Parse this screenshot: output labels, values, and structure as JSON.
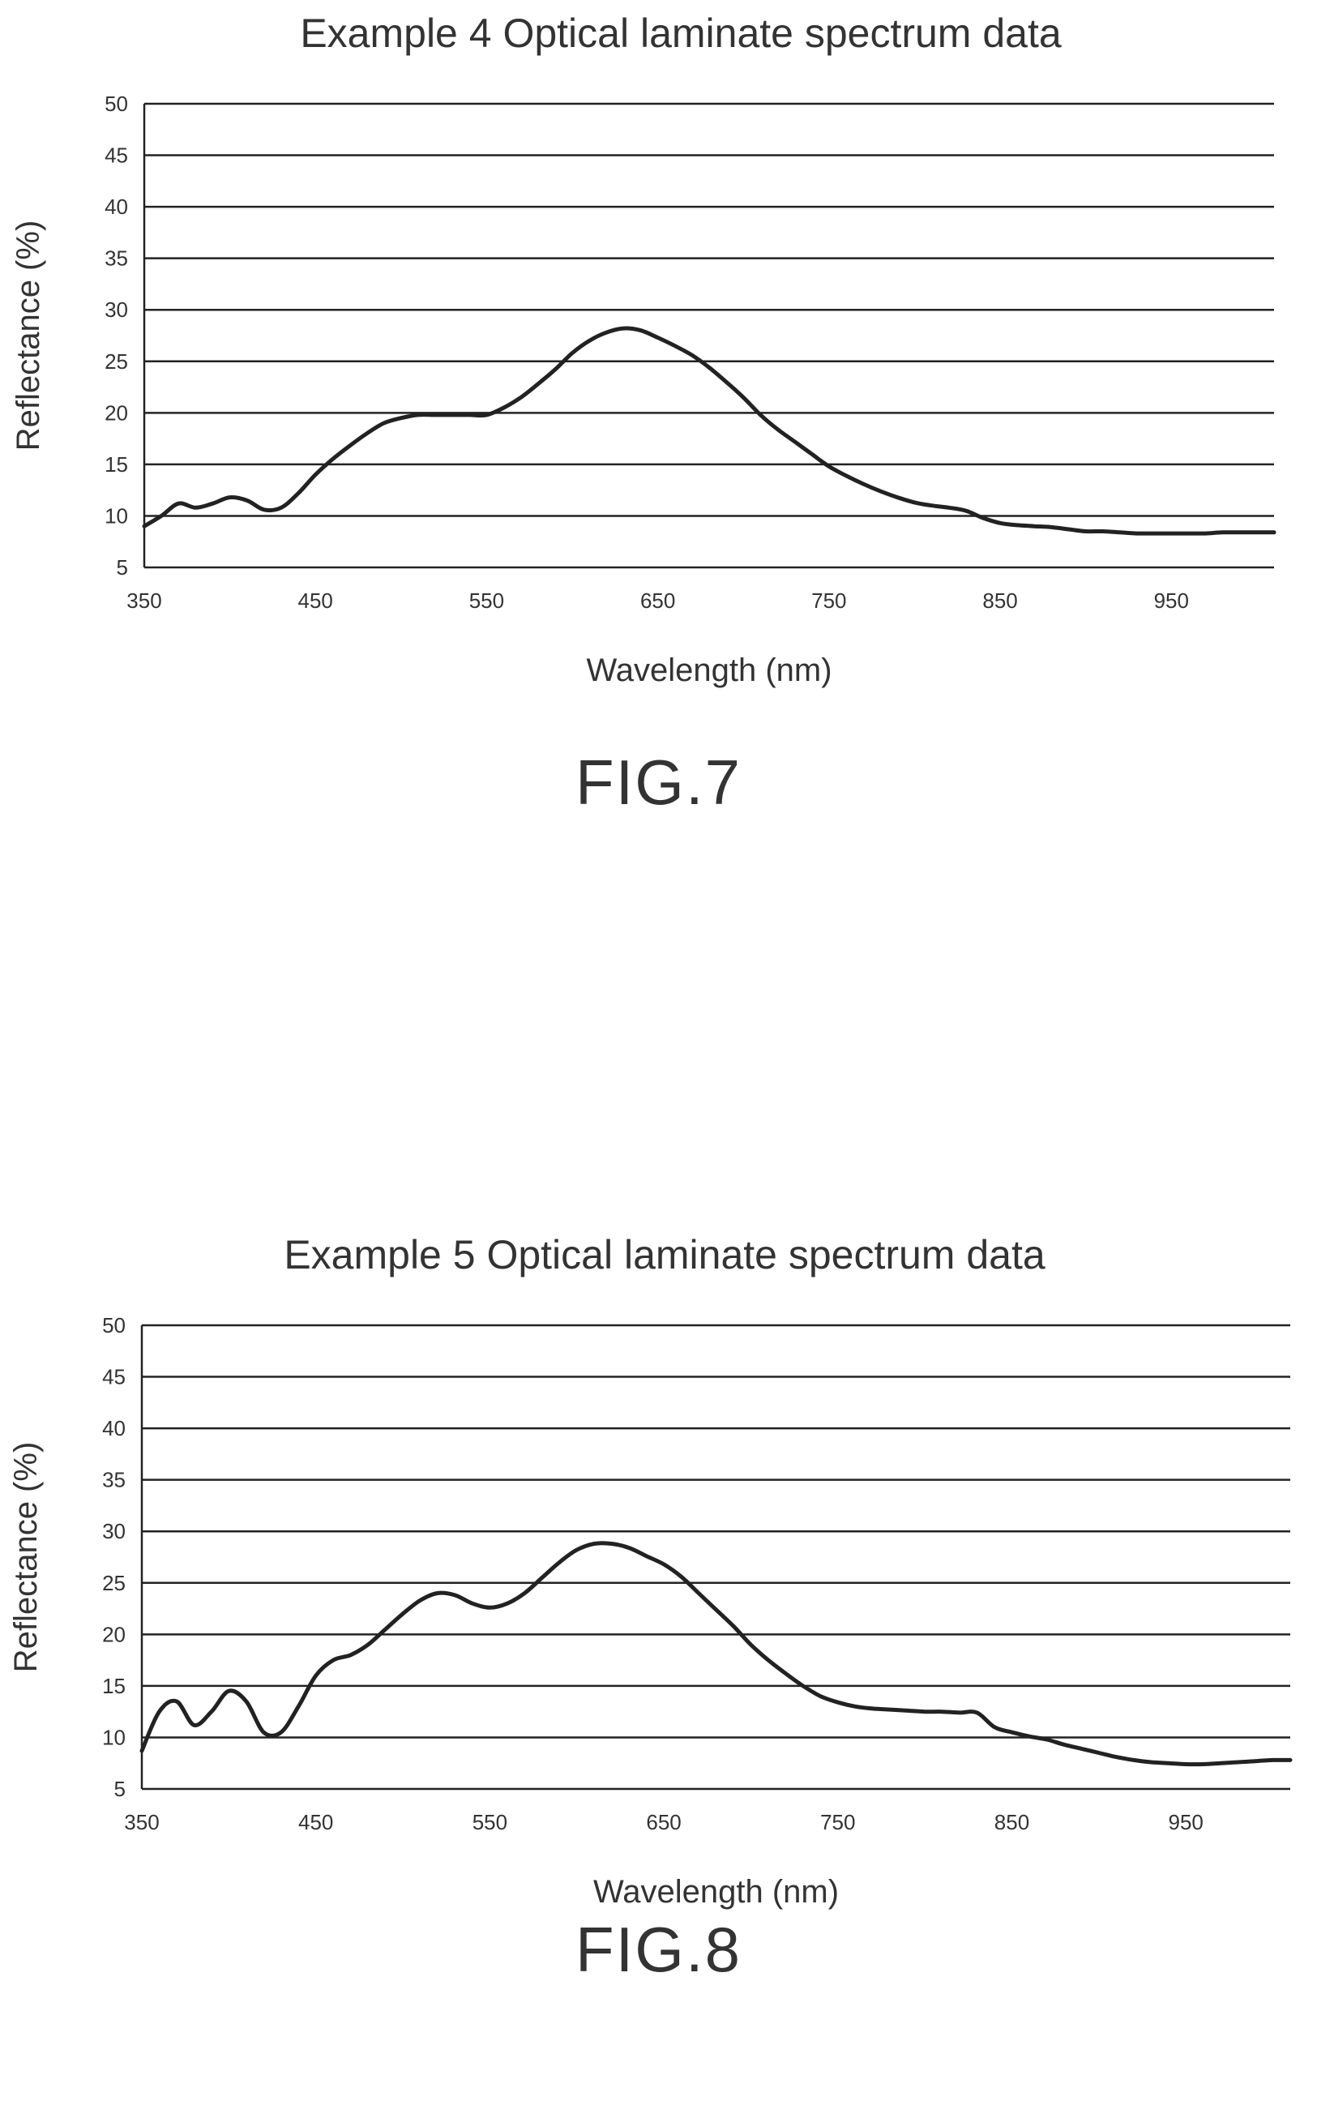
{
  "figures": [
    {
      "label": "FIG.7"
    },
    {
      "label": "FIG.8"
    }
  ],
  "colors": {
    "line": "#222222",
    "grid": "#222222",
    "text": "#333333"
  },
  "chart_data": [
    {
      "type": "line",
      "title": "Example 4     Optical laminate spectrum data",
      "xlabel": "Wavelength (nm)",
      "ylabel": "Reflectance (%)",
      "xlim": [
        350,
        1010
      ],
      "ylim": [
        5,
        50
      ],
      "xticks": [
        350,
        450,
        550,
        650,
        750,
        850,
        950
      ],
      "yticks": [
        5,
        10,
        15,
        20,
        25,
        30,
        35,
        40,
        45,
        50
      ],
      "grid": "horizontal",
      "legend": "none",
      "x": [
        350,
        360,
        370,
        380,
        390,
        400,
        410,
        420,
        430,
        440,
        450,
        460,
        470,
        480,
        490,
        500,
        510,
        520,
        530,
        540,
        550,
        560,
        570,
        580,
        590,
        600,
        610,
        620,
        630,
        640,
        650,
        660,
        670,
        680,
        690,
        700,
        710,
        720,
        730,
        740,
        750,
        760,
        770,
        780,
        790,
        800,
        810,
        820,
        830,
        840,
        850,
        860,
        870,
        880,
        890,
        900,
        910,
        920,
        930,
        940,
        950,
        960,
        970,
        980,
        990,
        1000,
        1010
      ],
      "series": [
        {
          "values": [
            9.0,
            10.0,
            11.2,
            10.8,
            11.2,
            11.8,
            11.5,
            10.6,
            10.8,
            12.2,
            14.0,
            15.5,
            16.8,
            18.0,
            19.0,
            19.5,
            19.8,
            19.8,
            19.8,
            19.8,
            19.8,
            20.5,
            21.5,
            22.8,
            24.2,
            25.8,
            27.0,
            27.8,
            28.2,
            28.0,
            27.3,
            26.5,
            25.6,
            24.4,
            23.0,
            21.5,
            19.8,
            18.4,
            17.2,
            16.0,
            14.8,
            13.9,
            13.1,
            12.4,
            11.8,
            11.3,
            11.0,
            10.8,
            10.5,
            9.8,
            9.3,
            9.1,
            9.0,
            8.9,
            8.7,
            8.5,
            8.5,
            8.4,
            8.3,
            8.3,
            8.3,
            8.3,
            8.3,
            8.4,
            8.4,
            8.4,
            8.4
          ]
        }
      ]
    },
    {
      "type": "line",
      "title": "Example 5   Optical laminate spectrum data",
      "xlabel": "Wavelength (nm)",
      "ylabel": "Reflectance (%)",
      "xlim": [
        350,
        1010
      ],
      "ylim": [
        5,
        50
      ],
      "xticks": [
        350,
        450,
        550,
        650,
        750,
        850,
        950
      ],
      "yticks": [
        5,
        10,
        15,
        20,
        25,
        30,
        35,
        40,
        45,
        50
      ],
      "grid": "horizontal",
      "legend": "none",
      "x": [
        350,
        360,
        370,
        380,
        390,
        400,
        410,
        420,
        430,
        440,
        450,
        460,
        470,
        480,
        490,
        500,
        510,
        520,
        530,
        540,
        550,
        560,
        570,
        580,
        590,
        600,
        610,
        620,
        630,
        640,
        650,
        660,
        670,
        680,
        690,
        700,
        710,
        720,
        730,
        740,
        750,
        760,
        770,
        780,
        790,
        800,
        810,
        820,
        830,
        840,
        850,
        860,
        870,
        880,
        890,
        900,
        910,
        920,
        930,
        940,
        950,
        960,
        970,
        980,
        990,
        1000,
        1010
      ],
      "series": [
        {
          "values": [
            8.7,
            12.5,
            13.5,
            11.2,
            12.5,
            14.5,
            13.5,
            10.5,
            10.5,
            13.0,
            16.0,
            17.5,
            18.0,
            19.0,
            20.5,
            22.0,
            23.3,
            24.0,
            23.8,
            23.0,
            22.6,
            23.0,
            24.0,
            25.5,
            27.0,
            28.2,
            28.8,
            28.8,
            28.4,
            27.6,
            26.8,
            25.6,
            24.0,
            22.4,
            20.8,
            19.0,
            17.5,
            16.2,
            15.0,
            14.0,
            13.4,
            13.0,
            12.8,
            12.7,
            12.6,
            12.5,
            12.5,
            12.4,
            12.4,
            11.0,
            10.5,
            10.1,
            9.8,
            9.3,
            8.9,
            8.5,
            8.1,
            7.8,
            7.6,
            7.5,
            7.4,
            7.4,
            7.5,
            7.6,
            7.7,
            7.8,
            7.8
          ]
        }
      ]
    }
  ]
}
